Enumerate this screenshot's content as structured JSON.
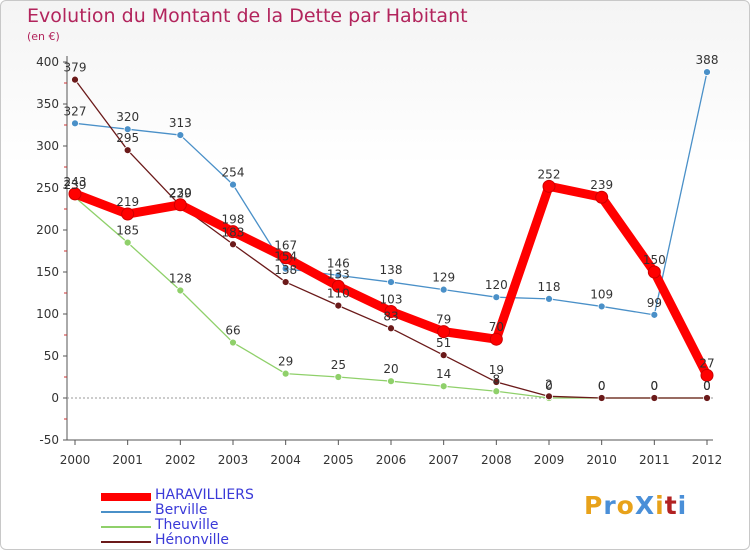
{
  "title": "Evolution du Montant de la Dette par Habitant",
  "subtitle": "(en €)",
  "logo": {
    "text": "ProXiti",
    "letter_colors": [
      "#e8a21a",
      "#4a8fd8",
      "#e8a21a",
      "#4a8fd8",
      "#e8a21a",
      "#b22222",
      "#4a8fd8"
    ]
  },
  "chart_data": {
    "type": "line",
    "title": "Evolution du Montant de la Dette par Habitant",
    "subtitle": "(en €)",
    "x": [
      "2000",
      "2001",
      "2002",
      "2003",
      "2004",
      "2005",
      "2006",
      "2007",
      "2008",
      "2009",
      "2010",
      "2011",
      "2012"
    ],
    "ylim": [
      -50,
      400
    ],
    "yticks": [
      "400",
      "350",
      "300",
      "250",
      "200",
      "150",
      "100",
      "50",
      "0",
      "-50"
    ],
    "grid": false,
    "legend_position": "bottom-left",
    "series": [
      {
        "name": "HARAVILLIERS",
        "color": "#ff0000",
        "values": [
          243,
          219,
          230,
          198,
          167,
          133,
          103,
          79,
          70,
          252,
          239,
          150,
          27
        ],
        "labels": [
          "243",
          "219",
          "230",
          "198",
          "167",
          "133",
          "103",
          "79",
          "70",
          "252",
          "239",
          "150",
          "27"
        ]
      },
      {
        "name": "Berville",
        "color": "#4a90c8",
        "values": [
          327,
          320,
          313,
          254,
          154,
          146,
          138,
          129,
          120,
          118,
          109,
          99,
          388
        ],
        "labels": [
          "327",
          "320",
          "313",
          "254",
          "154",
          "146",
          "138",
          "129",
          "120",
          "118",
          "109",
          "99",
          "388"
        ]
      },
      {
        "name": "Theuville",
        "color": "#8fd06a",
        "values": [
          239,
          185,
          128,
          66,
          29,
          25,
          20,
          14,
          8,
          0,
          0,
          0,
          0
        ],
        "labels": [
          "239",
          "185",
          "128",
          "66",
          "29",
          "25",
          "20",
          "14",
          "8",
          "0",
          "0",
          "0",
          "0"
        ]
      },
      {
        "name": "Hénonville",
        "color": "#6b1a1a",
        "values": [
          379,
          295,
          229,
          183,
          138,
          110,
          83,
          51,
          19,
          2,
          0,
          0,
          0
        ],
        "labels": [
          "379",
          "295",
          "229",
          "183",
          "138",
          "110",
          "83",
          "51",
          "19",
          "2",
          "0",
          "0",
          "0"
        ]
      }
    ]
  }
}
